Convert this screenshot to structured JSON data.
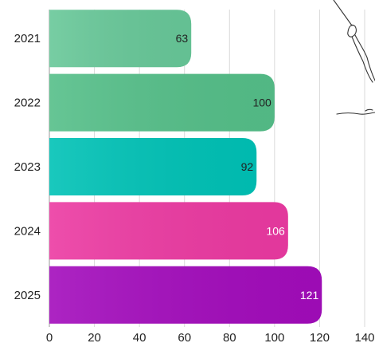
{
  "chart_data": {
    "type": "bar",
    "orientation": "horizontal",
    "categories": [
      "2021",
      "2022",
      "2023",
      "2024",
      "2025"
    ],
    "values": [
      63,
      100,
      92,
      106,
      121
    ],
    "colors": [
      "#68c899",
      "#55bf89",
      "#00c2b6",
      "#ec3aa2",
      "#a30cbc"
    ],
    "value_label_colors": [
      "#222222",
      "#222222",
      "#222222",
      "#ffffff",
      "#ffffff"
    ],
    "xlim": [
      0,
      140
    ],
    "xticks": [
      0,
      20,
      40,
      60,
      80,
      100,
      120,
      140
    ],
    "grid": true,
    "legend": "none"
  }
}
